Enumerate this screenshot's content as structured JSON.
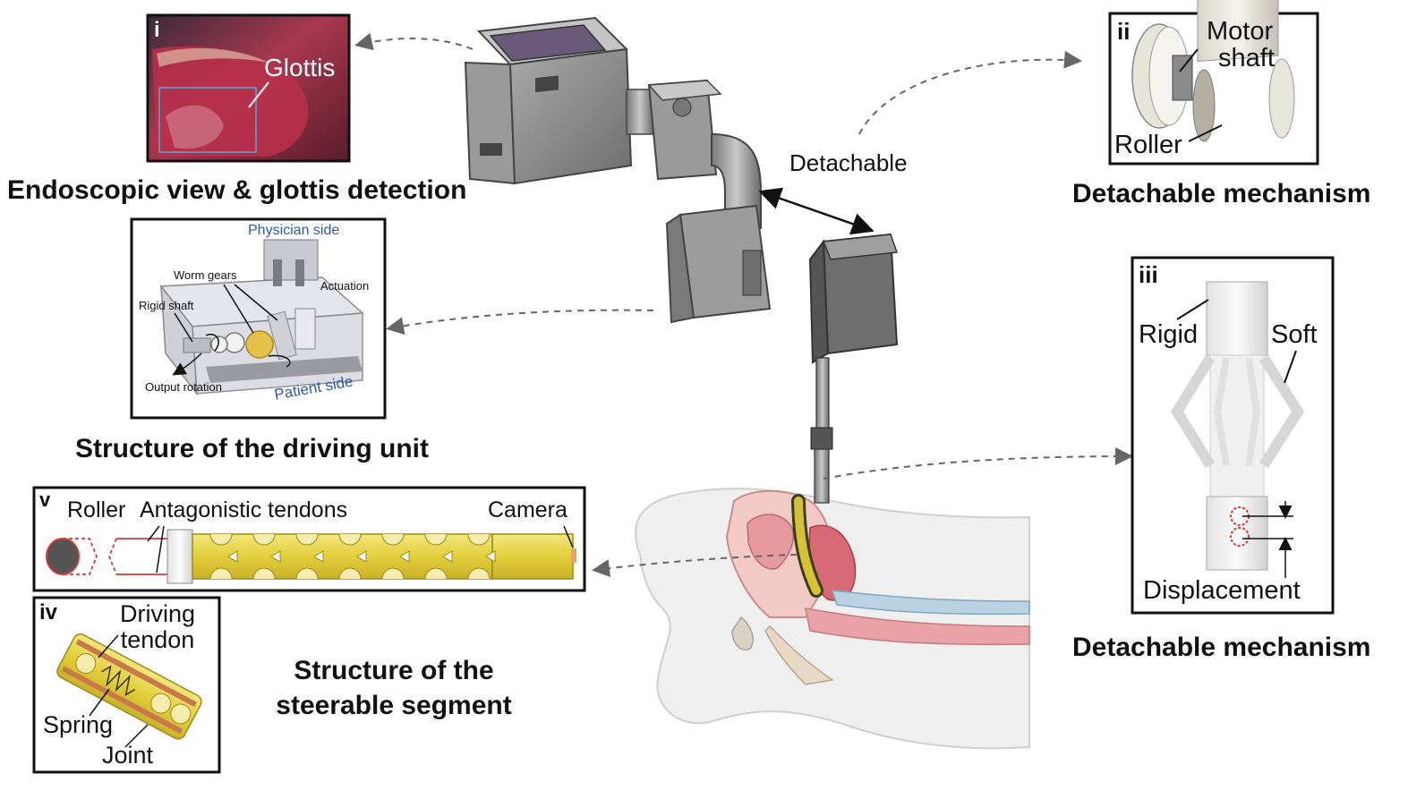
{
  "colors": {
    "tendon_yellow": "#e8d64a",
    "tissue_pink": "#e9a3a6",
    "hardware_gray": "#8c8c8c",
    "label_blue": "#2c5aa0",
    "marker_red": "#d23a3a"
  },
  "panels": {
    "i": {
      "numeral": "i",
      "glottis_label": "Glottis",
      "caption": "Endoscopic view & glottis detection"
    },
    "ii": {
      "numeral": "ii",
      "motor_line1": "Motor",
      "motor_line2": "shaft",
      "roller": "Roller",
      "caption": "Detachable mechanism"
    },
    "iii": {
      "numeral": "iii",
      "rigid": "Rigid",
      "soft": "Soft",
      "displacement": "Displacement",
      "caption": "Detachable mechanism"
    },
    "driving_unit": {
      "physician_side": "Physician side",
      "worm_gears": "Worm gears",
      "actuation": "Actuation",
      "rigid_shaft": "Rigid shaft",
      "output_rotation": "Output rotation",
      "patient_side": "Patient side",
      "caption": "Structure of the driving unit"
    },
    "v": {
      "numeral": "v",
      "roller": "Roller",
      "tendons": "Antagonistic tendons",
      "camera": "Camera"
    },
    "iv": {
      "numeral": "iv",
      "driving_line1": "Driving",
      "driving_line2": "tendon",
      "spring": "Spring",
      "joint": "Joint",
      "caption_line1": "Structure of the",
      "caption_line2": "steerable segment"
    }
  },
  "center": {
    "detachable": "Detachable"
  }
}
